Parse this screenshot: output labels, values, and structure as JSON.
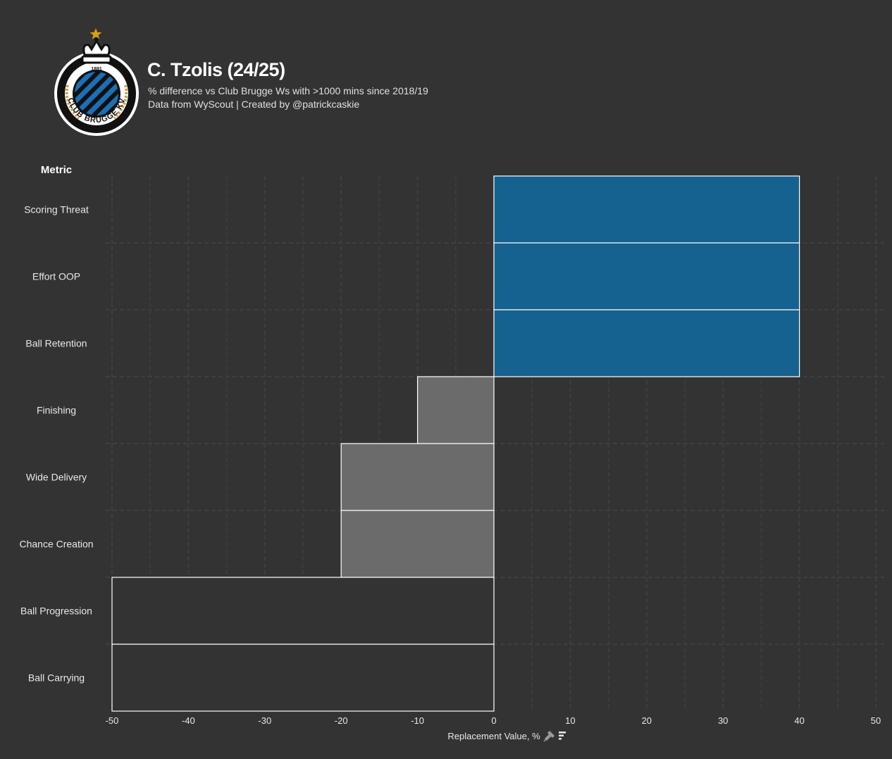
{
  "header": {
    "title": "C. Tzolis (24/25)",
    "subtitle_line1": "% difference vs Club Brugge Ws with >1000 mins since 2018/19",
    "subtitle_line2": "Data from WyScout | Created by @patrickcaskie"
  },
  "logo": {
    "ring_text": "CLUB BRUGGE KV",
    "year": "1891",
    "icon": "club-brugge-crest-icon",
    "star_color": "#d4a017",
    "stripe_color": "#1b6fb5"
  },
  "colors": {
    "background": "#333333",
    "positive_bar": "#15618f",
    "negative_bar": "#6b6b6b",
    "floor_bar": "#333333",
    "bar_edge": "#ffffff",
    "grid": "#3f3f3f"
  },
  "chart_data": {
    "type": "bar",
    "orientation": "horizontal",
    "title": "C. Tzolis (24/25)",
    "ylabel": "Metric",
    "xlabel": "Replacement Value, %",
    "xlabel_icons": [
      "pin-icon",
      "sort-icon"
    ],
    "xlim": [
      -50,
      50
    ],
    "xticks": [
      -50,
      -40,
      -30,
      -20,
      -10,
      0,
      10,
      20,
      30,
      40,
      50
    ],
    "grid": true,
    "categories": [
      "Scoring Threat",
      "Effort OOP",
      "Ball Retention",
      "Finishing",
      "Wide Delivery",
      "Chance Creation",
      "Ball Progression",
      "Ball Carrying"
    ],
    "values": [
      40,
      40,
      40,
      -10,
      -20,
      -20,
      -50,
      -50
    ]
  }
}
